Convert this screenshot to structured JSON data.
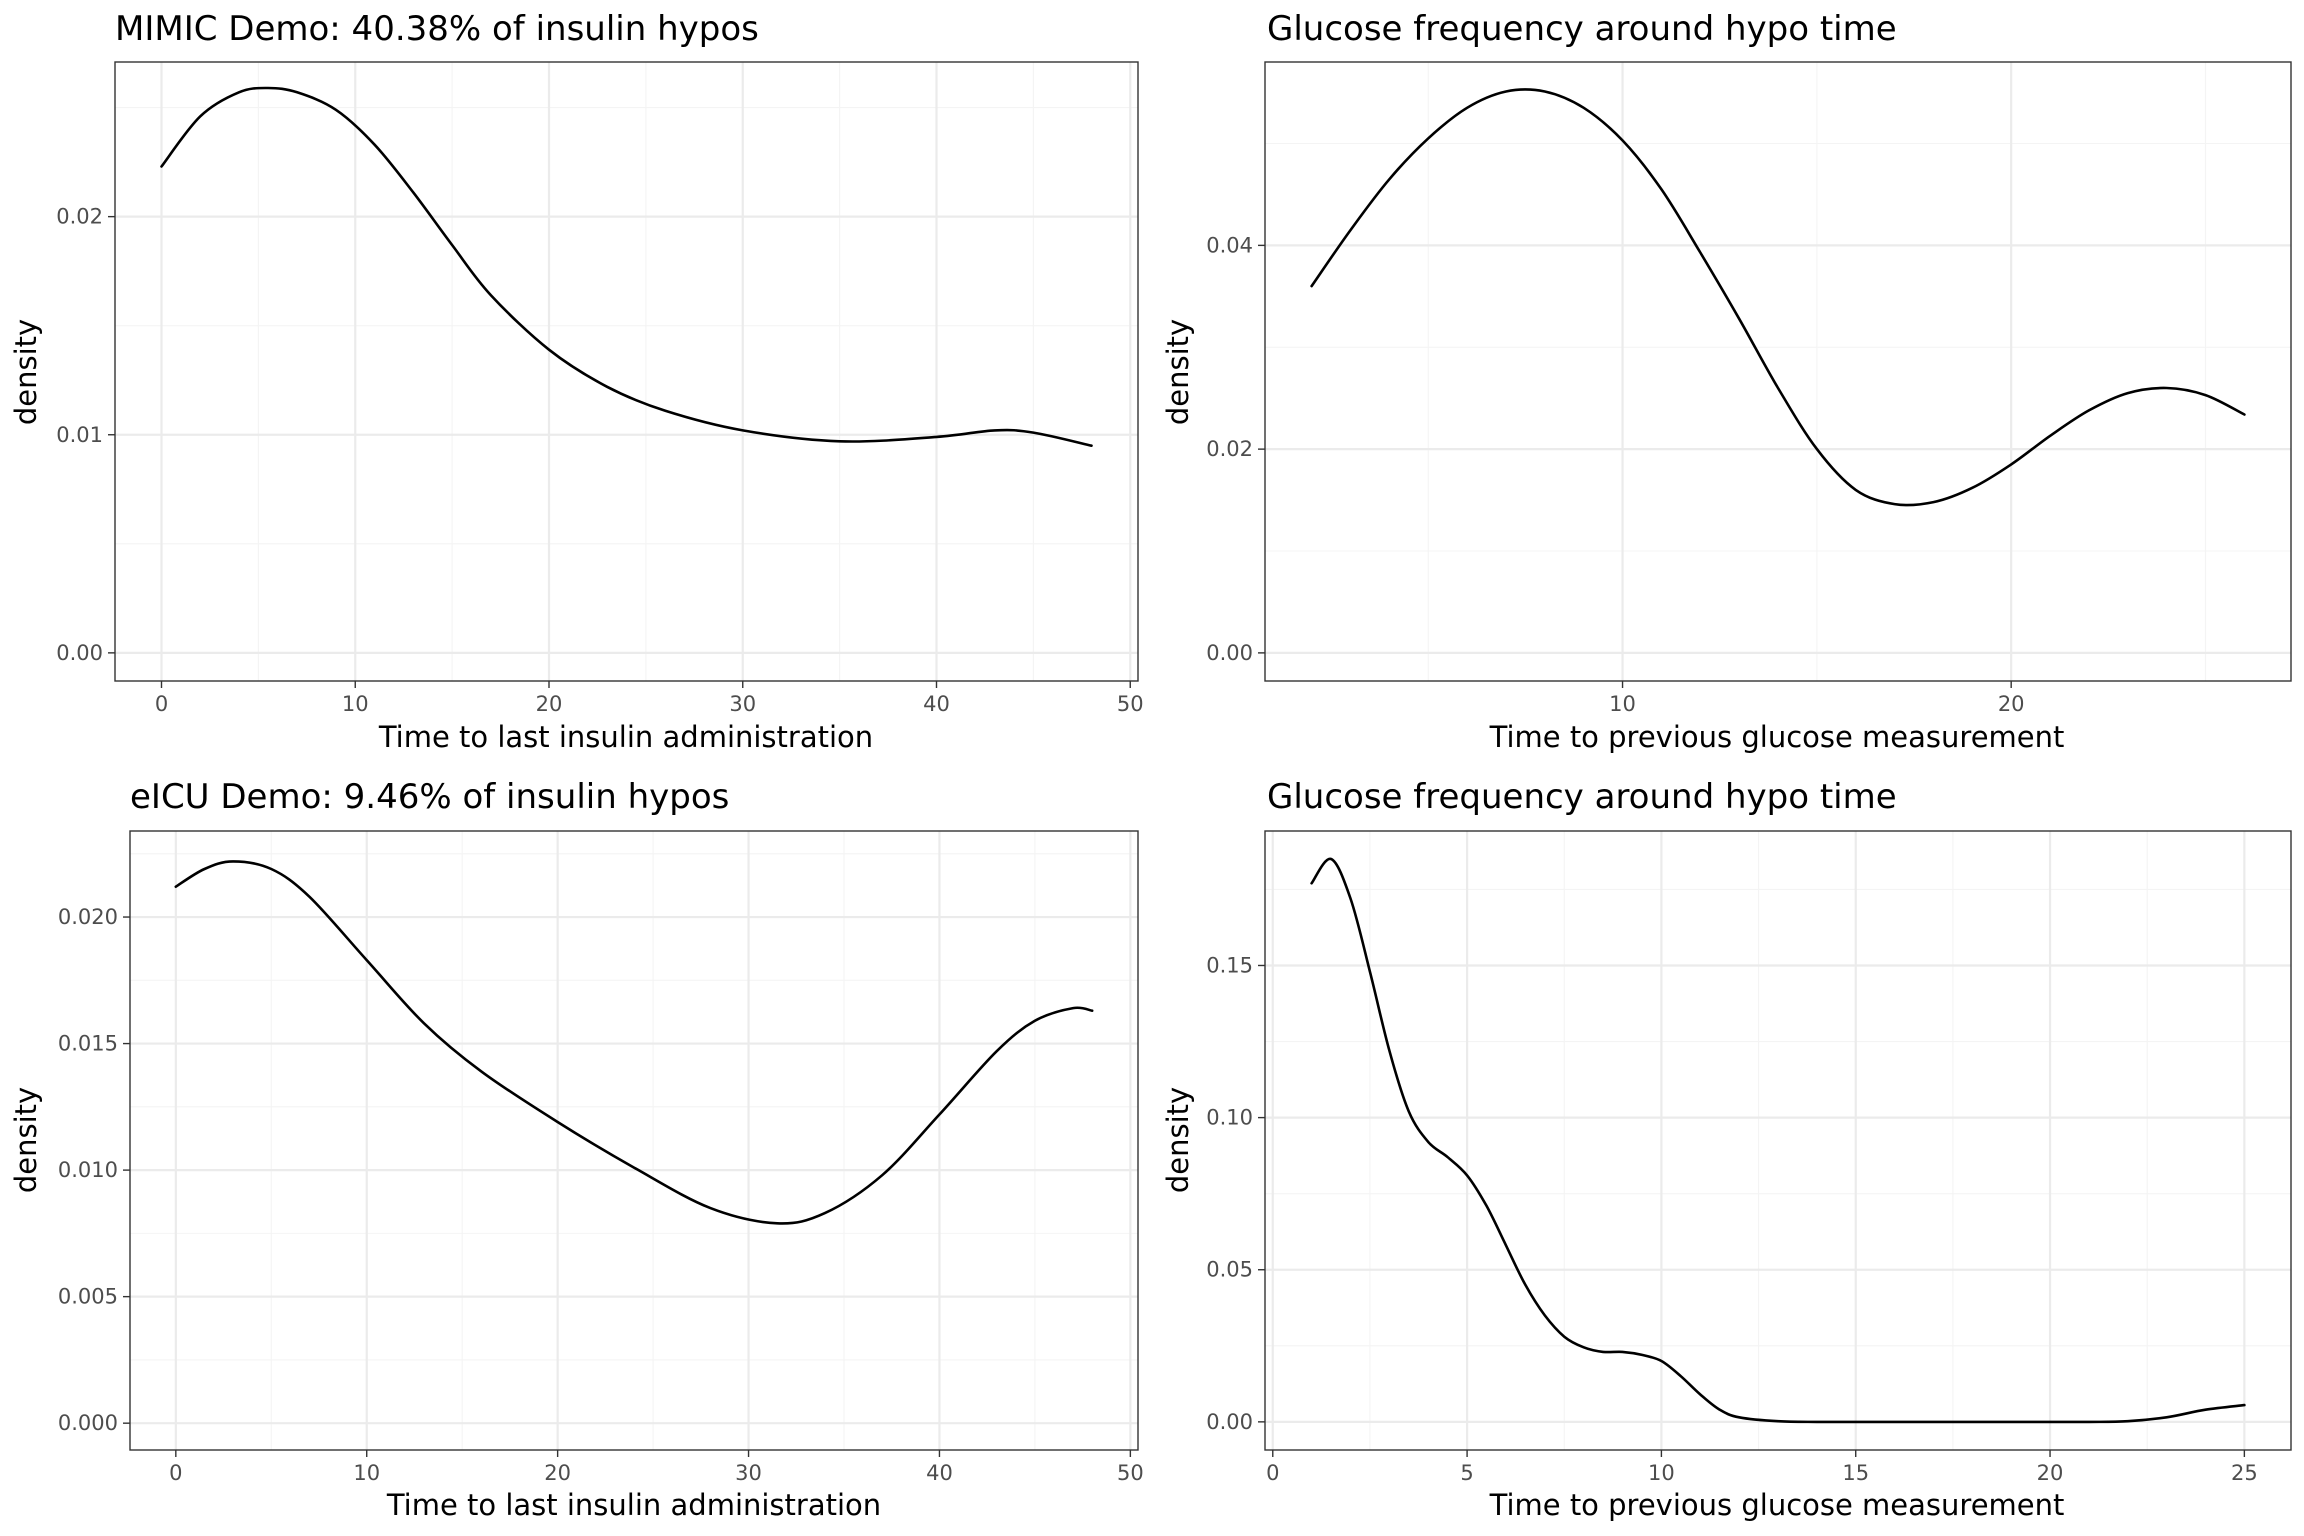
{
  "chart_data": [
    {
      "type": "line",
      "title": "MIMIC Demo: 40.38% of insulin hypos",
      "xlabel": "Time to last insulin administration",
      "ylabel": "density",
      "xlim": [
        -2.4,
        50.4
      ],
      "ylim": [
        -0.00129,
        0.02709
      ],
      "x_ticks": [
        0,
        10,
        20,
        30,
        40,
        50
      ],
      "x_tick_labels": [
        "0",
        "10",
        "20",
        "30",
        "40",
        "50"
      ],
      "y_ticks": [
        0,
        0.01,
        0.02
      ],
      "y_tick_labels": [
        "0.00",
        "0.01",
        "0.02"
      ],
      "grid": true,
      "series": [
        {
          "x": [
            0,
            2,
            4,
            5.5,
            7,
            9,
            11,
            13,
            15,
            17,
            20,
            23,
            26,
            30,
            35,
            40,
            43,
            45,
            48
          ],
          "y": [
            0.0223,
            0.0246,
            0.0257,
            0.0259,
            0.0257,
            0.0249,
            0.0233,
            0.0211,
            0.0187,
            0.0164,
            0.0139,
            0.0122,
            0.0111,
            0.0102,
            0.0097,
            0.0099,
            0.0102,
            0.0101,
            0.0095
          ]
        }
      ]
    },
    {
      "type": "line",
      "title": "Glucose frequency around hypo time",
      "xlabel": "Time to previous glucose measurement",
      "ylabel": "density",
      "xlim": [
        0.8,
        27.2
      ],
      "ylim": [
        -0.00276,
        0.058
      ],
      "x_ticks": [
        10,
        20
      ],
      "x_tick_labels": [
        "10",
        "20"
      ],
      "y_ticks": [
        0,
        0.02,
        0.04
      ],
      "y_tick_labels": [
        "0.00",
        "0.02",
        "0.04"
      ],
      "grid": true,
      "series": [
        {
          "x": [
            2,
            3,
            4,
            5,
            6,
            7,
            8,
            9,
            10,
            11,
            12,
            13,
            14,
            15,
            16,
            17,
            18,
            19,
            20,
            21,
            22,
            23,
            24,
            25,
            26
          ],
          "y": [
            0.036,
            0.0415,
            0.0465,
            0.0505,
            0.0535,
            0.0551,
            0.0551,
            0.0535,
            0.0503,
            0.0455,
            0.0393,
            0.0328,
            0.026,
            0.02,
            0.016,
            0.0146,
            0.0148,
            0.0162,
            0.0185,
            0.0213,
            0.0238,
            0.0255,
            0.026,
            0.0253,
            0.0234
          ]
        }
      ]
    },
    {
      "type": "line",
      "title": "eICU Demo: 9.46% of insulin hypos",
      "xlabel": "Time to last insulin administration",
      "ylabel": "density",
      "xlim": [
        -2.4,
        50.4
      ],
      "ylim": [
        -0.00106,
        0.0234
      ],
      "x_ticks": [
        0,
        10,
        20,
        30,
        40,
        50
      ],
      "x_tick_labels": [
        "0",
        "10",
        "20",
        "30",
        "40",
        "50"
      ],
      "y_ticks": [
        0,
        0.005,
        0.01,
        0.015,
        0.02
      ],
      "y_tick_labels": [
        "0.000",
        "0.005",
        "0.010",
        "0.015",
        "0.020"
      ],
      "grid": true,
      "series": [
        {
          "x": [
            0,
            1.5,
            3,
            5,
            7,
            10,
            13,
            16,
            20,
            24,
            28,
            31.5,
            34,
            37,
            40,
            43,
            45,
            47,
            48
          ],
          "y": [
            0.0212,
            0.0219,
            0.0222,
            0.0219,
            0.0208,
            0.0183,
            0.0158,
            0.0139,
            0.0119,
            0.0101,
            0.0085,
            0.0079,
            0.0083,
            0.0098,
            0.0122,
            0.0147,
            0.0159,
            0.0164,
            0.0163
          ]
        }
      ]
    },
    {
      "type": "line",
      "title": "Glucose frequency around hypo time",
      "xlabel": "Time to previous glucose measurement",
      "ylabel": "density",
      "xlim": [
        -0.2,
        26.2
      ],
      "ylim": [
        -0.00925,
        0.1942
      ],
      "x_ticks": [
        0,
        5,
        10,
        15,
        20,
        25
      ],
      "x_tick_labels": [
        "0",
        "5",
        "10",
        "15",
        "20",
        "25"
      ],
      "y_ticks": [
        0,
        0.05,
        0.1,
        0.15
      ],
      "y_tick_labels": [
        "0.00",
        "0.05",
        "0.10",
        "0.15"
      ],
      "grid": true,
      "series": [
        {
          "x": [
            1,
            1.5,
            2,
            2.5,
            3,
            3.5,
            4,
            4.5,
            5,
            5.5,
            6,
            6.5,
            7,
            7.5,
            8,
            8.5,
            9,
            9.5,
            10,
            10.5,
            11,
            11.5,
            12,
            13,
            14,
            15,
            17,
            19,
            21,
            22,
            23,
            24,
            25
          ],
          "y": [
            0.177,
            0.185,
            0.172,
            0.148,
            0.122,
            0.102,
            0.092,
            0.087,
            0.081,
            0.071,
            0.058,
            0.045,
            0.035,
            0.028,
            0.0245,
            0.023,
            0.023,
            0.022,
            0.02,
            0.015,
            0.009,
            0.004,
            0.0015,
            0.0002,
            0,
            0,
            0,
            0,
            0,
            0.0002,
            0.0015,
            0.004,
            0.0055
          ]
        }
      ]
    }
  ]
}
